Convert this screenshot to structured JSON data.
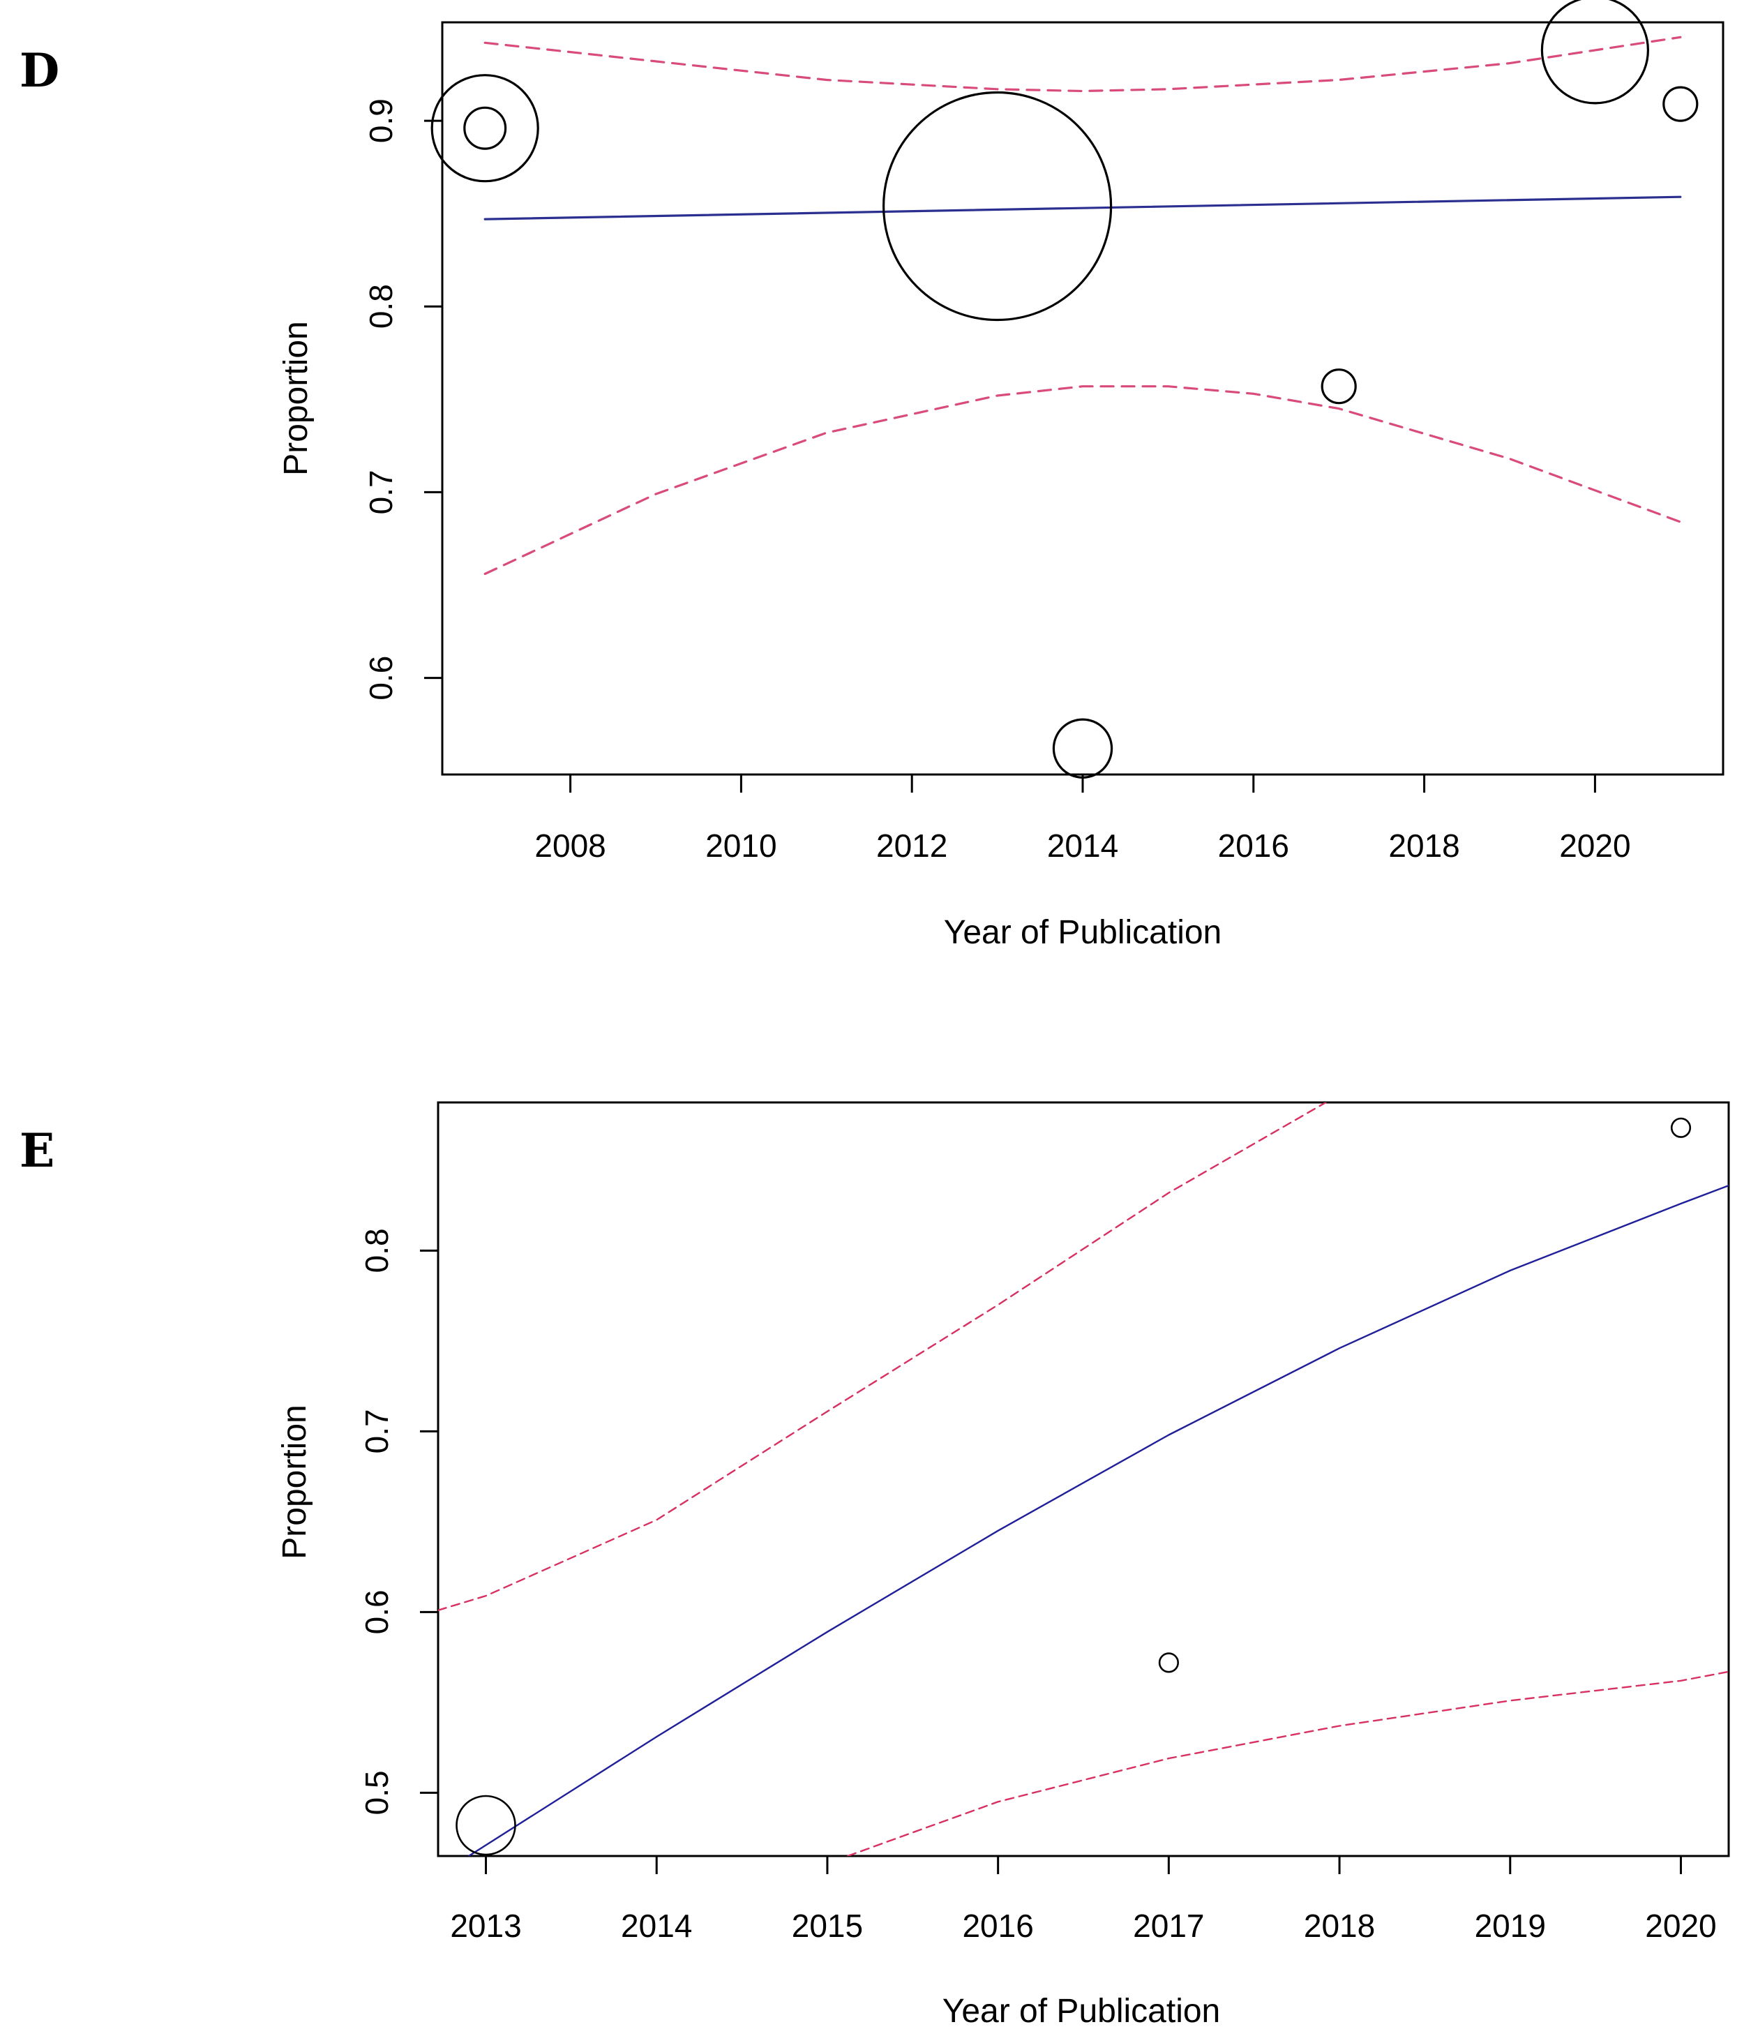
{
  "chart_data": [
    {
      "panel": "D",
      "type": "scatter",
      "title": "",
      "xlabel": "Year of Publication",
      "ylabel": "Proportion",
      "xlim": [
        2006.5,
        2021.5
      ],
      "ylim": [
        0.548,
        0.953
      ],
      "xticks": [
        "2008",
        "2010",
        "2012",
        "2014",
        "2016",
        "2018",
        "2020"
      ],
      "xtick_values": [
        2008,
        2010,
        2012,
        2014,
        2016,
        2018,
        2020
      ],
      "yticks": [
        "0.6",
        "0.7",
        "0.8",
        "0.9"
      ],
      "ytick_values": [
        0.6,
        0.7,
        0.8,
        0.9
      ],
      "grid": false,
      "legend": "none",
      "points": [
        {
          "x": 2007,
          "y": 0.896,
          "weight": 1.0
        },
        {
          "x": 2007,
          "y": 0.896,
          "weight": 0.15
        },
        {
          "x": 2013,
          "y": 0.854,
          "weight": 4.6
        },
        {
          "x": 2014,
          "y": 0.562,
          "weight": 0.3
        },
        {
          "x": 2017,
          "y": 0.757,
          "weight": 0.1
        },
        {
          "x": 2020,
          "y": 0.938,
          "weight": 1.0
        },
        {
          "x": 2021,
          "y": 0.909,
          "weight": 0.1
        }
      ],
      "series": [
        {
          "name": "regression",
          "color": "#2b2f8f",
          "dashed": false,
          "x": [
            2007,
            2021
          ],
          "values": [
            0.847,
            0.859
          ]
        },
        {
          "name": "upper bound",
          "color": "#d94c7a",
          "dashed": true,
          "x": [
            2007,
            2009,
            2011,
            2013,
            2014,
            2015,
            2017,
            2019,
            2021
          ],
          "values": [
            0.942,
            0.932,
            0.922,
            0.917,
            0.916,
            0.917,
            0.922,
            0.931,
            0.945
          ]
        },
        {
          "name": "lower bound",
          "color": "#d94c7a",
          "dashed": true,
          "x": [
            2007,
            2009,
            2011,
            2013,
            2014,
            2015,
            2016,
            2017,
            2019,
            2021
          ],
          "values": [
            0.656,
            0.699,
            0.732,
            0.752,
            0.757,
            0.757,
            0.753,
            0.745,
            0.718,
            0.684
          ]
        }
      ]
    },
    {
      "panel": "E",
      "type": "scatter",
      "title": "",
      "xlabel": "Year of Publication",
      "ylabel": "Proportion",
      "xlim": [
        2012.72,
        2020.28
      ],
      "ylim": [
        0.465,
        0.882
      ],
      "xticks": [
        "2013",
        "2014",
        "2015",
        "2016",
        "2017",
        "2018",
        "2019",
        "2020"
      ],
      "xtick_values": [
        2013,
        2014,
        2015,
        2016,
        2017,
        2018,
        2019,
        2020
      ],
      "yticks": [
        "0.5",
        "0.6",
        "0.7",
        "0.8"
      ],
      "ytick_values": [
        0.5,
        0.6,
        0.7,
        0.8
      ],
      "grid": false,
      "legend": "none",
      "points": [
        {
          "x": 2013,
          "y": 0.482,
          "weight": 1.0
        },
        {
          "x": 2017,
          "y": 0.572,
          "weight": 0.1
        },
        {
          "x": 2020,
          "y": 0.868,
          "weight": 0.1
        }
      ],
      "series": [
        {
          "name": "regression",
          "color": "#1f1f9a",
          "dashed": false,
          "x": [
            2012.9,
            2014,
            2015,
            2016,
            2017,
            2018,
            2019,
            2020,
            2020.28
          ],
          "values": [
            0.465,
            0.531,
            0.589,
            0.645,
            0.698,
            0.746,
            0.789,
            0.826,
            0.836
          ]
        },
        {
          "name": "upper bound",
          "color": "#d83060",
          "dashed": true,
          "x": [
            2012.72,
            2013,
            2014,
            2015,
            2016,
            2017,
            2017.92
          ],
          "values": [
            0.601,
            0.609,
            0.651,
            0.711,
            0.77,
            0.832,
            0.882
          ]
        },
        {
          "name": "lower bound",
          "color": "#d83060",
          "dashed": true,
          "x": [
            2015.12,
            2015.5,
            2016,
            2017,
            2018,
            2019,
            2020,
            2020.28
          ],
          "values": [
            0.465,
            0.478,
            0.495,
            0.519,
            0.537,
            0.551,
            0.562,
            0.567
          ]
        }
      ]
    }
  ]
}
